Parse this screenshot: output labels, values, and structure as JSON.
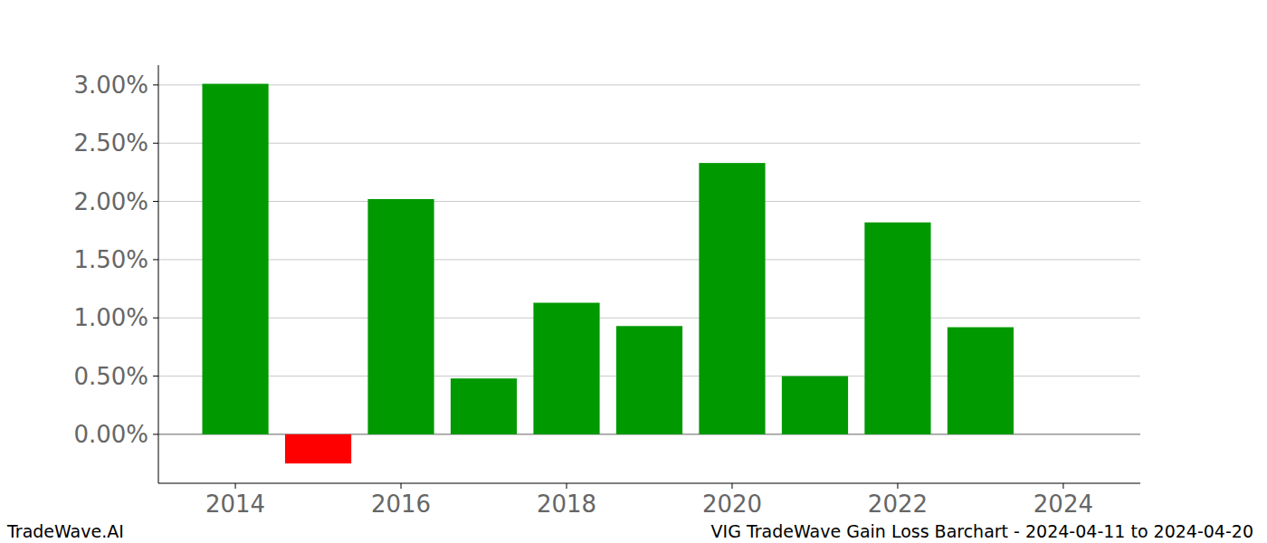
{
  "chart_data": {
    "type": "bar",
    "title": "VIG TradeWave Gain Loss Barchart - 2024-04-11 to 2024-04-20",
    "annotations": [
      "TradeWave.AI"
    ],
    "x": [
      2014,
      2015,
      2016,
      2017,
      2018,
      2019,
      2020,
      2021,
      2022,
      2023
    ],
    "values": [
      3.01,
      -0.25,
      2.02,
      0.48,
      1.13,
      0.93,
      2.33,
      0.5,
      1.82,
      0.92
    ],
    "colors": [
      "#009900",
      "#ff0000",
      "#009900",
      "#009900",
      "#009900",
      "#009900",
      "#009900",
      "#009900",
      "#009900",
      "#009900"
    ],
    "xlim": [
      2013.07,
      2024.93
    ],
    "xticks": [
      2014,
      2016,
      2018,
      2020,
      2022,
      2024
    ],
    "ylim": [
      -0.42,
      3.17
    ],
    "yticks": [
      {
        "value": 0,
        "label": "0.00%"
      },
      {
        "value": 0.5,
        "label": "0.50%"
      },
      {
        "value": 1,
        "label": "1.00%"
      },
      {
        "value": 1.5,
        "label": "1.50%"
      },
      {
        "value": 2,
        "label": "2.00%"
      },
      {
        "value": 2.5,
        "label": "2.50%"
      },
      {
        "value": 3,
        "label": "3.00%"
      }
    ],
    "grid": true
  }
}
